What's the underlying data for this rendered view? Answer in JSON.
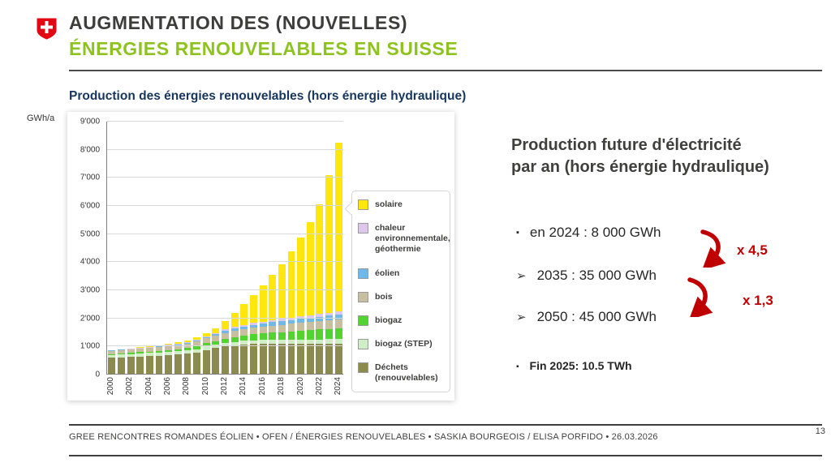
{
  "header": {
    "title_line1": "AUGMENTATION DES (NOUVELLES)",
    "title_line2": "ÉNERGIES RENOUVELABLES EN SUISSE"
  },
  "chart": {
    "title": "Production des énergies renouvelables (hors énergie hydraulique)",
    "y_axis_unit": "GWh/a"
  },
  "chart_data": {
    "type": "bar",
    "stacked": true,
    "title": "Production des énergies renouvelables (hors énergie hydraulique)",
    "xlabel": "",
    "ylabel": "GWh/a",
    "ylim": [
      0,
      9000
    ],
    "grid": true,
    "legend_position": "right",
    "y_ticks": [
      "0",
      "1'000",
      "2'000",
      "3'000",
      "4'000",
      "5'000",
      "6'000",
      "7'000",
      "8'000",
      "9'000"
    ],
    "x": [
      2000,
      2001,
      2002,
      2003,
      2004,
      2005,
      2006,
      2007,
      2008,
      2009,
      2010,
      2011,
      2012,
      2013,
      2014,
      2015,
      2016,
      2017,
      2018,
      2019,
      2020,
      2021,
      2022,
      2023,
      2024
    ],
    "x_tick_step": 2,
    "series": [
      {
        "name": "dechets",
        "label": "Déchets (renouvelables)",
        "color": "#8b8b50",
        "values": [
          600,
          615,
          630,
          645,
          660,
          675,
          690,
          710,
          740,
          790,
          880,
          940,
          1000,
          1040,
          1070,
          1090,
          1100,
          1100,
          1100,
          1100,
          1100,
          1100,
          1100,
          1100,
          1100
        ]
      },
      {
        "name": "biogaz-step",
        "label": "biogaz (STEP)",
        "color": "#cfeec6",
        "values": [
          100,
          102,
          104,
          106,
          108,
          110,
          112,
          114,
          116,
          118,
          120,
          122,
          125,
          127,
          130,
          132,
          135,
          137,
          140,
          143,
          146,
          149,
          152,
          156,
          160
        ]
      },
      {
        "name": "biogaz",
        "label": "biogaz",
        "color": "#52d32f",
        "values": [
          30,
          34,
          38,
          43,
          48,
          55,
          65,
          75,
          85,
          100,
          115,
          135,
          155,
          175,
          195,
          215,
          235,
          255,
          275,
          295,
          315,
          335,
          355,
          370,
          385
        ]
      },
      {
        "name": "bois",
        "label": "bois",
        "color": "#c7bf9f",
        "values": [
          120,
          124,
          128,
          132,
          137,
          142,
          147,
          152,
          158,
          166,
          176,
          186,
          196,
          206,
          216,
          226,
          236,
          246,
          256,
          266,
          276,
          286,
          296,
          308,
          320
        ]
      },
      {
        "name": "eolien",
        "label": "éolien",
        "color": "#6fb9e8",
        "values": [
          5,
          6,
          8,
          10,
          13,
          16,
          20,
          25,
          30,
          36,
          42,
          60,
          80,
          90,
          100,
          108,
          112,
          125,
          130,
          138,
          142,
          148,
          152,
          160,
          170
        ]
      },
      {
        "name": "chaleur",
        "label": "chaleur environnementale, géothermie",
        "color": "#ddc7ec",
        "values": [
          10,
          11,
          13,
          15,
          17,
          19,
          22,
          25,
          28,
          32,
          38,
          44,
          50,
          55,
          60,
          65,
          70,
          75,
          80,
          85,
          90,
          95,
          100,
          105,
          110
        ]
      },
      {
        "name": "solaire",
        "label": "solaire",
        "color": "#ffe60c",
        "values": [
          10,
          12,
          15,
          18,
          22,
          28,
          36,
          46,
          60,
          80,
          110,
          170,
          300,
          500,
          750,
          1000,
          1300,
          1600,
          1950,
          2350,
          2800,
          3300,
          3900,
          4900,
          6000
        ]
      }
    ]
  },
  "right_panel": {
    "title_line1": "Production future d'électricité",
    "title_line2": "par an (hors énergie hydraulique)",
    "bullet_1": "en 2024 : 8 000 GWh",
    "bullet_2": "2035 : 35 000 GWh",
    "bullet_3": "2050 : 45 000 GWh",
    "marker_square": "▪",
    "marker_arrow": "➢",
    "multiplier_1": "x 4,5",
    "multiplier_2": "x 1,3",
    "note": "Fin 2025: 10.5 TWh"
  },
  "footer": {
    "text": "GREE RENCONTRES ROMANDES ÉOLIEN •  OFEN / ÉNERGIES RENOUVELABLES • SASKIA BOURGEOIS / ELISA PORFIDO • 26.03.2026",
    "page_number": "13"
  },
  "colors": {
    "accent_green": "#8ec31f",
    "swiss_red": "#e30613",
    "highlight_red": "#bf0000",
    "chart_title_blue": "#17365d"
  }
}
